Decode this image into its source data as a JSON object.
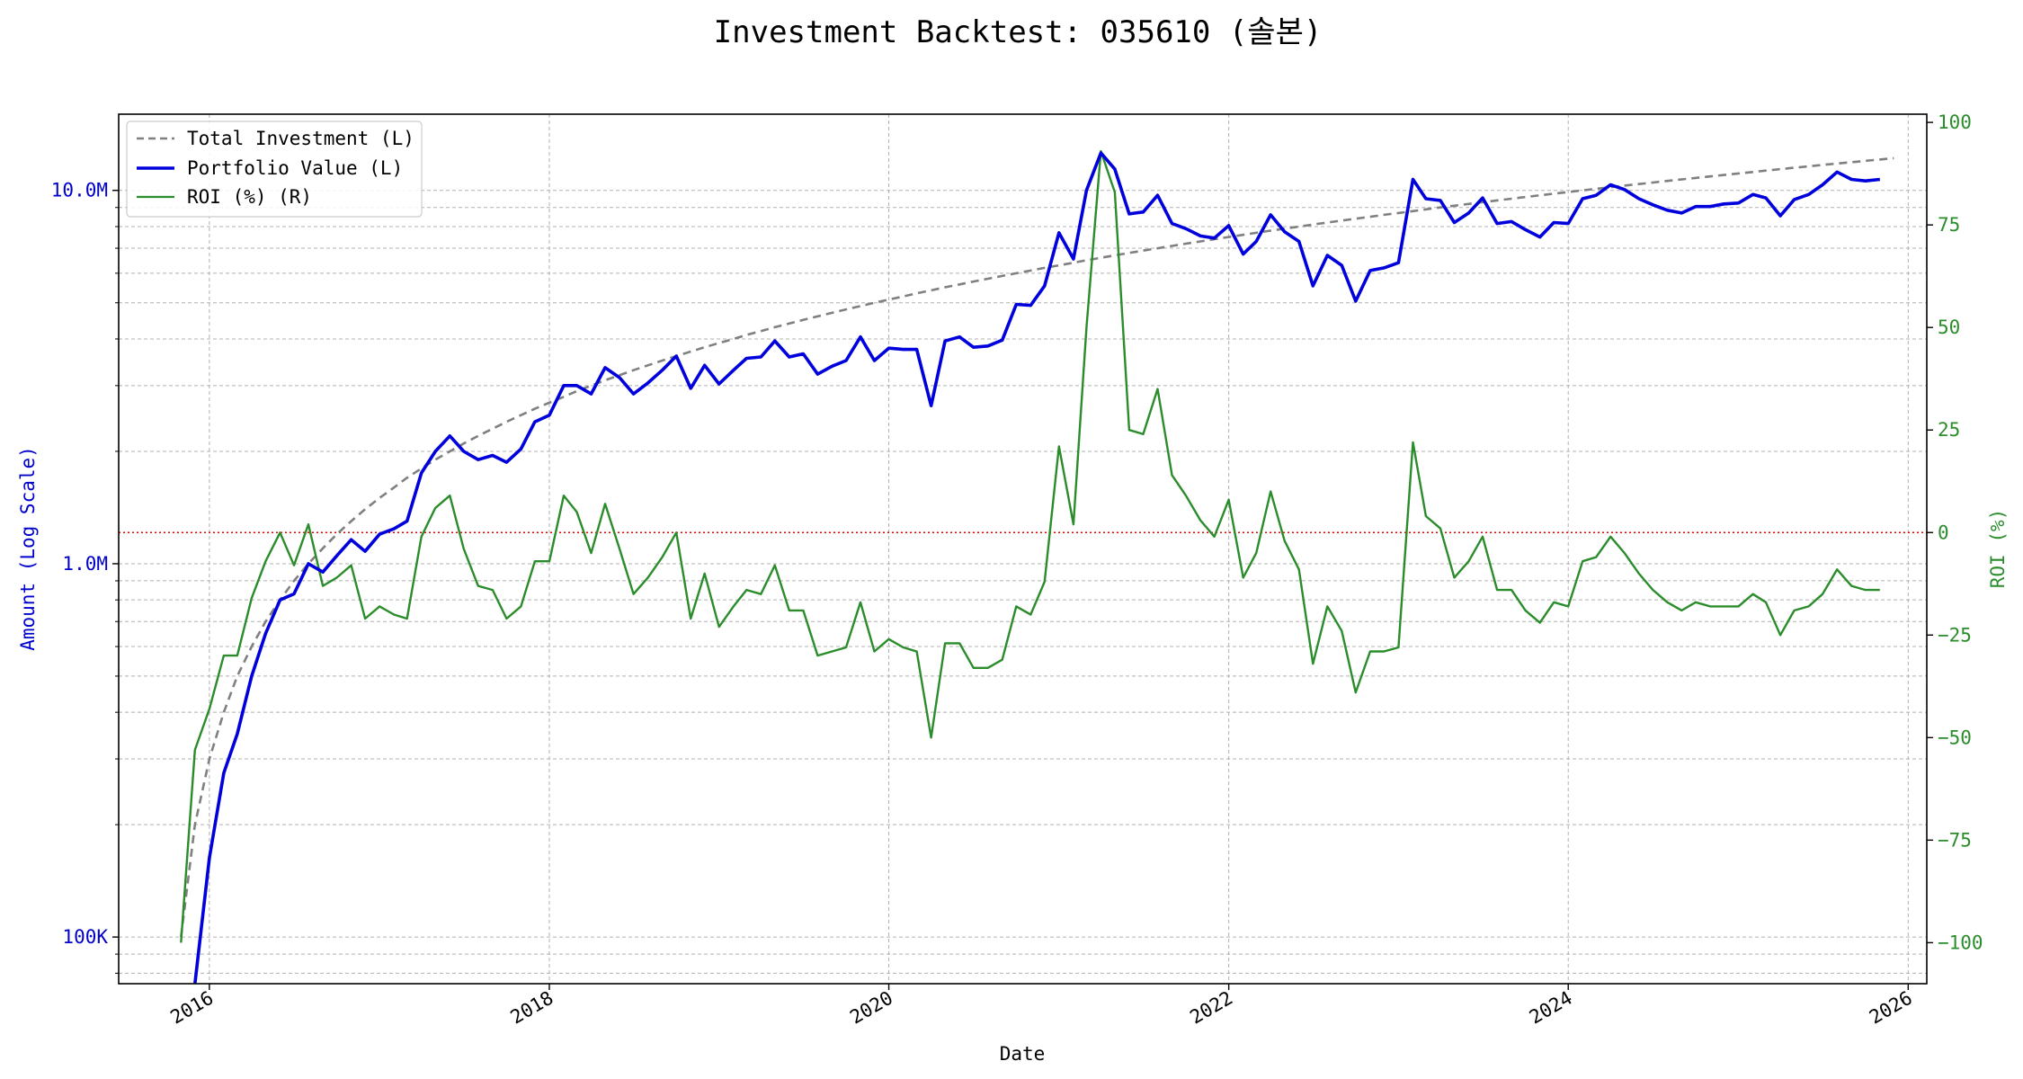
{
  "chart_data": {
    "type": "line",
    "title": "Investment Backtest: 035610 (솔본)",
    "xlabel": "Date",
    "ylabel_left": "Amount (Log Scale)",
    "ylabel_right": "ROI (%)",
    "x_range": [
      "2015-06-20",
      "2026-02-10"
    ],
    "ylim_left": [
      75000,
      16000000
    ],
    "ylim_right": [
      -110,
      102
    ],
    "left_scale": "log",
    "grid": "on (dashed)",
    "legend_position": "top-left",
    "zero_line": {
      "axis": "right",
      "value": 0,
      "color": "#e00000",
      "style": "dotted"
    },
    "x_ticks": [
      {
        "label": "2016",
        "date": "2016-01-01"
      },
      {
        "label": "2018",
        "date": "2018-01-01"
      },
      {
        "label": "2020",
        "date": "2020-01-01"
      },
      {
        "label": "2022",
        "date": "2022-01-01"
      },
      {
        "label": "2024",
        "date": "2024-01-01"
      },
      {
        "label": "2026",
        "date": "2026-01-01"
      }
    ],
    "left_ticks": [
      {
        "label": "100K",
        "value": 100000
      },
      {
        "label": "1.0M",
        "value": 1000000
      },
      {
        "label": "10.0M",
        "value": 10000000
      }
    ],
    "right_ticks": [
      {
        "label": "100",
        "value": 100
      },
      {
        "label": "75",
        "value": 75
      },
      {
        "label": "50",
        "value": 50
      },
      {
        "label": "25",
        "value": 25
      },
      {
        "label": "0",
        "value": 0
      },
      {
        "label": "−25",
        "value": -25
      },
      {
        "label": "−50",
        "value": -50
      },
      {
        "label": "−75",
        "value": -75
      },
      {
        "label": "−100",
        "value": -100
      }
    ],
    "series": [
      {
        "name": "Total Investment (L)",
        "axis": "left",
        "color": "#808080",
        "style": "dashed",
        "start": "2015-11-01",
        "step": "monthly",
        "formula": "100000 * (months + 1) — derived, drawn as a smooth curve"
      },
      {
        "name": "Portfolio Value (L)",
        "axis": "left",
        "color": "#0000dd",
        "style": "solid",
        "x": [
          "2015-12-01",
          "2016-01-01",
          "2016-02-01",
          "2016-03-01",
          "2016-04-01",
          "2016-05-01",
          "2016-06-01",
          "2016-07-01",
          "2016-08-01",
          "2016-09-01",
          "2016-10-01",
          "2016-11-01",
          "2016-12-01",
          "2017-01-01",
          "2017-02-01",
          "2017-03-01",
          "2017-04-01",
          "2017-05-01",
          "2017-06-01",
          "2017-07-01",
          "2017-08-01",
          "2017-09-01",
          "2017-10-01",
          "2017-11-01",
          "2017-12-01",
          "2018-01-01",
          "2018-02-01",
          "2018-03-01",
          "2018-04-01",
          "2018-05-01",
          "2018-06-01",
          "2018-07-01",
          "2018-08-01",
          "2018-09-01",
          "2018-10-01",
          "2018-11-01",
          "2018-12-01",
          "2019-01-01",
          "2019-02-01",
          "2019-03-01",
          "2019-04-01",
          "2019-05-01",
          "2019-06-01",
          "2019-07-01",
          "2019-08-01",
          "2019-09-01",
          "2019-10-01",
          "2019-11-01",
          "2019-12-01",
          "2020-01-01",
          "2020-02-01",
          "2020-03-01",
          "2020-04-01",
          "2020-05-01",
          "2020-06-01",
          "2020-07-01",
          "2020-08-01",
          "2020-09-01",
          "2020-10-01",
          "2020-11-01",
          "2020-12-01",
          "2021-01-01",
          "2021-02-01",
          "2021-03-01",
          "2021-04-01",
          "2021-05-01",
          "2021-06-01",
          "2021-07-01",
          "2021-08-01",
          "2021-09-01",
          "2021-10-01",
          "2021-11-01",
          "2021-12-01",
          "2022-01-01",
          "2022-02-01",
          "2022-03-01",
          "2022-04-01",
          "2022-05-01",
          "2022-06-01",
          "2022-07-01",
          "2022-08-01",
          "2022-09-01",
          "2022-10-01",
          "2022-11-01",
          "2022-12-01",
          "2023-01-01",
          "2023-02-01",
          "2023-03-01",
          "2023-04-01",
          "2023-05-01",
          "2023-06-01",
          "2023-07-01",
          "2023-08-01",
          "2023-09-01",
          "2023-10-01",
          "2023-11-01",
          "2023-12-01",
          "2024-01-01",
          "2024-02-01",
          "2024-03-01",
          "2024-04-01",
          "2024-05-01",
          "2024-06-01",
          "2024-07-01",
          "2024-08-01",
          "2024-09-01",
          "2024-10-01",
          "2024-11-01",
          "2024-12-01",
          "2025-01-01",
          "2025-02-01",
          "2025-03-01",
          "2025-04-01",
          "2025-05-01",
          "2025-06-01",
          "2025-07-01",
          "2025-08-01",
          "2025-09-01",
          "2025-10-01",
          "2025-11-01"
        ],
        "values": [
          75000,
          163000,
          275000,
          350000,
          500000,
          650000,
          800000,
          830000,
          1000000,
          950000,
          1050000,
          1160000,
          1080000,
          1200000,
          1240000,
          1300000,
          1750000,
          2000000,
          2200000,
          2000000,
          1900000,
          1950000,
          1870000,
          2030000,
          2400000,
          2500000,
          3000000,
          3000000,
          2850000,
          3350000,
          3150000,
          2850000,
          3050000,
          3300000,
          3600000,
          2950000,
          3400000,
          3030000,
          3300000,
          3550000,
          3580000,
          3950000,
          3580000,
          3650000,
          3220000,
          3380000,
          3500000,
          4050000,
          3500000,
          3780000,
          3750000,
          3750000,
          2650000,
          3950000,
          4050000,
          3800000,
          3830000,
          3970000,
          4950000,
          4920000,
          5550000,
          7700000,
          6550000,
          10000000,
          12600000,
          11400000,
          8650000,
          8750000,
          9700000,
          8150000,
          7900000,
          7550000,
          7450000,
          8050000,
          6750000,
          7300000,
          8600000,
          7750000,
          7300000,
          5550000,
          6700000,
          6300000,
          5050000,
          6100000,
          6200000,
          6400000,
          10700000,
          9500000,
          9400000,
          8200000,
          8700000,
          9550000,
          8150000,
          8250000,
          7850000,
          7500000,
          8200000,
          8150000,
          9500000,
          9700000,
          10350000,
          10050000,
          9500000,
          9150000,
          8850000,
          8700000,
          9050000,
          9050000,
          9200000,
          9250000,
          9750000,
          9550000,
          8550000,
          9450000,
          9750000,
          10350000,
          11200000,
          10700000,
          10600000,
          10700000
        ]
      },
      {
        "name": "ROI (%) (R)",
        "axis": "right",
        "color": "#2a8c2a",
        "style": "solid",
        "x": [
          "2015-11-01",
          "2015-12-01",
          "2016-01-01",
          "2016-02-01",
          "2016-03-01",
          "2016-04-01",
          "2016-05-01",
          "2016-06-01",
          "2016-07-01",
          "2016-08-01",
          "2016-09-01",
          "2016-10-01",
          "2016-11-01",
          "2016-12-01",
          "2017-01-01",
          "2017-02-01",
          "2017-03-01",
          "2017-04-01",
          "2017-05-01",
          "2017-06-01",
          "2017-07-01",
          "2017-08-01",
          "2017-09-01",
          "2017-10-01",
          "2017-11-01",
          "2017-12-01",
          "2018-01-01",
          "2018-02-01",
          "2018-03-01",
          "2018-04-01",
          "2018-05-01",
          "2018-06-01",
          "2018-07-01",
          "2018-08-01",
          "2018-09-01",
          "2018-10-01",
          "2018-11-01",
          "2018-12-01",
          "2019-01-01",
          "2019-02-01",
          "2019-03-01",
          "2019-04-01",
          "2019-05-01",
          "2019-06-01",
          "2019-07-01",
          "2019-08-01",
          "2019-09-01",
          "2019-10-01",
          "2019-11-01",
          "2019-12-01",
          "2020-01-01",
          "2020-02-01",
          "2020-03-01",
          "2020-04-01",
          "2020-05-01",
          "2020-06-01",
          "2020-07-01",
          "2020-08-01",
          "2020-09-01",
          "2020-10-01",
          "2020-11-01",
          "2020-12-01",
          "2021-01-01",
          "2021-02-01",
          "2021-03-01",
          "2021-04-01",
          "2021-05-01",
          "2021-06-01",
          "2021-07-01",
          "2021-08-01",
          "2021-09-01",
          "2021-10-01",
          "2021-11-01",
          "2021-12-01",
          "2022-01-01",
          "2022-02-01",
          "2022-03-01",
          "2022-04-01",
          "2022-05-01",
          "2022-06-01",
          "2022-07-01",
          "2022-08-01",
          "2022-09-01",
          "2022-10-01",
          "2022-11-01",
          "2022-12-01",
          "2023-01-01",
          "2023-02-01",
          "2023-03-01",
          "2023-04-01",
          "2023-05-01",
          "2023-06-01",
          "2023-07-01",
          "2023-08-01",
          "2023-09-01",
          "2023-10-01",
          "2023-11-01",
          "2023-12-01",
          "2024-01-01",
          "2024-02-01",
          "2024-03-01",
          "2024-04-01",
          "2024-05-01",
          "2024-06-01",
          "2024-07-01",
          "2024-08-01",
          "2024-09-01",
          "2024-10-01",
          "2024-11-01",
          "2024-12-01",
          "2025-01-01",
          "2025-02-01",
          "2025-03-01",
          "2025-04-01",
          "2025-05-01",
          "2025-06-01",
          "2025-07-01",
          "2025-08-01",
          "2025-09-01",
          "2025-10-01",
          "2025-11-01"
        ],
        "values": [
          -100,
          -53,
          -43,
          -30,
          -30,
          -16,
          -7,
          0,
          -8,
          2,
          -13,
          -11,
          -8,
          -21,
          -18,
          -20,
          -21,
          -1,
          6,
          9,
          -4,
          -13,
          -14,
          -21,
          -18,
          -7,
          -7,
          9,
          5,
          -5,
          7,
          -4,
          -15,
          -11,
          -6,
          0,
          -21,
          -10,
          -23,
          -18,
          -14,
          -15,
          -8,
          -19,
          -19,
          -30,
          -29,
          -28,
          -17,
          -29,
          -26,
          -28,
          -29,
          -50,
          -27,
          -27,
          -33,
          -33,
          -31,
          -18,
          -20,
          -12,
          21,
          2,
          50,
          93,
          83,
          25,
          24,
          35,
          14,
          9,
          3,
          -1,
          8,
          -11,
          -5,
          10,
          -2,
          -9,
          -32,
          -18,
          -24,
          -39,
          -29,
          -29,
          -28,
          22,
          4,
          1,
          -11,
          -7,
          -1,
          -14,
          -14,
          -19,
          -22,
          -17,
          -18,
          -7,
          -6,
          -1,
          -5,
          -10,
          -14,
          -17,
          -19,
          -17,
          -18,
          -18,
          -18,
          -15,
          -17,
          -25,
          -19,
          -18,
          -15,
          -9,
          -13,
          -14,
          -14
        ]
      }
    ]
  }
}
